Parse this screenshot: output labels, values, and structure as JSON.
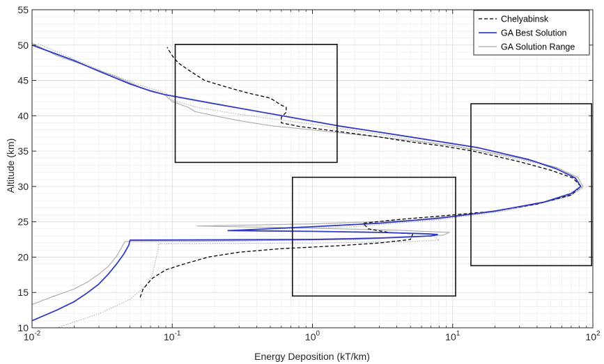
{
  "chart_data": {
    "type": "line",
    "xlabel": "Energy Deposition (kT/km)",
    "ylabel": "Altitude (km)",
    "xscale": "log",
    "xlim": [
      0.01,
      100
    ],
    "ylim": [
      10,
      55
    ],
    "grid": "on (major and minor)",
    "legend_position": "top-right",
    "x_tick_labels": [
      {
        "value": 0.01,
        "base": "10",
        "exp": "-2"
      },
      {
        "value": 0.1,
        "base": "10",
        "exp": "-1"
      },
      {
        "value": 1,
        "base": "10",
        "exp": "0"
      },
      {
        "value": 10,
        "base": "10",
        "exp": "1"
      },
      {
        "value": 100,
        "base": "10",
        "exp": "2"
      }
    ],
    "y_ticks": [
      10,
      15,
      20,
      25,
      30,
      35,
      40,
      45,
      50,
      55
    ],
    "series": [
      {
        "name": "Chelyabinsk",
        "color": "#000000",
        "style": "dashed",
        "points": [
          [
            0.059,
            14.3
          ],
          [
            0.062,
            15.5
          ],
          [
            0.072,
            17.0
          ],
          [
            0.09,
            18.2
          ],
          [
            0.12,
            19.0
          ],
          [
            0.18,
            20.0
          ],
          [
            0.3,
            20.7
          ],
          [
            0.6,
            21.2
          ],
          [
            1.5,
            21.6
          ],
          [
            3.0,
            22.0
          ],
          [
            5.0,
            22.5
          ],
          [
            5.2,
            23.3
          ],
          [
            3.5,
            23.5
          ],
          [
            2.5,
            24.0
          ],
          [
            2.3,
            24.8
          ],
          [
            4.0,
            25.3
          ],
          [
            8.0,
            25.8
          ],
          [
            20.0,
            26.5
          ],
          [
            40.0,
            27.5
          ],
          [
            70.0,
            28.8
          ],
          [
            82.0,
            30.0
          ],
          [
            72.0,
            31.2
          ],
          [
            50.0,
            32.3
          ],
          [
            30.0,
            33.5
          ],
          [
            14.0,
            35.0
          ],
          [
            8.0,
            35.8
          ],
          [
            5.0,
            36.3
          ],
          [
            3.0,
            37.0
          ],
          [
            1.5,
            37.8
          ],
          [
            0.8,
            38.5
          ],
          [
            0.6,
            39.0
          ],
          [
            0.6,
            39.8
          ],
          [
            0.65,
            40.5
          ],
          [
            0.65,
            41.2
          ],
          [
            0.6,
            41.5
          ],
          [
            0.5,
            42.5
          ],
          [
            0.35,
            43.2
          ],
          [
            0.25,
            44.0
          ],
          [
            0.17,
            45.0
          ],
          [
            0.13,
            46.5
          ],
          [
            0.11,
            47.5
          ],
          [
            0.1,
            48.5
          ],
          [
            0.095,
            49.2
          ],
          [
            0.092,
            49.7
          ]
        ]
      },
      {
        "name": "GA Best Solution",
        "color": "#2f3bc7",
        "style": "solid",
        "points": [
          [
            0.01,
            11.0
          ],
          [
            0.015,
            12.5
          ],
          [
            0.02,
            13.7
          ],
          [
            0.025,
            15.0
          ],
          [
            0.03,
            16.2
          ],
          [
            0.035,
            17.6
          ],
          [
            0.04,
            19.0
          ],
          [
            0.045,
            20.4
          ],
          [
            0.049,
            21.7
          ],
          [
            0.05,
            22.4
          ],
          [
            1.0,
            22.5
          ],
          [
            3.0,
            22.7
          ],
          [
            7.0,
            23.0
          ],
          [
            7.8,
            23.2
          ],
          [
            6.5,
            23.3
          ],
          [
            3.0,
            23.5
          ],
          [
            1.0,
            23.65
          ],
          [
            0.25,
            23.75
          ],
          [
            1.0,
            24.3
          ],
          [
            3.0,
            24.8
          ],
          [
            8.0,
            25.5
          ],
          [
            20.0,
            26.5
          ],
          [
            45.0,
            27.8
          ],
          [
            70.0,
            29.0
          ],
          [
            82.0,
            30.0
          ],
          [
            75.0,
            31.2
          ],
          [
            55.0,
            32.5
          ],
          [
            35.0,
            33.8
          ],
          [
            15.0,
            35.5
          ],
          [
            5.0,
            37.0
          ],
          [
            1.5,
            38.6
          ],
          [
            0.5,
            40.3
          ],
          [
            0.2,
            41.7
          ],
          [
            0.088,
            43.0
          ],
          [
            0.07,
            43.5
          ],
          [
            0.05,
            44.5
          ],
          [
            0.03,
            46.3
          ],
          [
            0.02,
            47.8
          ],
          [
            0.01,
            50.0
          ]
        ]
      },
      {
        "name": "GA Solution Range",
        "color": "#aaaaaa",
        "style": "solid",
        "points": [
          [
            0.01,
            13.3
          ],
          [
            0.014,
            14.4
          ],
          [
            0.02,
            15.5
          ],
          [
            0.025,
            16.5
          ],
          [
            0.03,
            17.6
          ],
          [
            0.035,
            18.7
          ],
          [
            0.04,
            20.1
          ],
          [
            0.043,
            21.2
          ],
          [
            0.046,
            22.2
          ],
          [
            0.3,
            22.3
          ],
          [
            2.0,
            22.5
          ],
          [
            5.0,
            22.8
          ],
          [
            8.5,
            23.1
          ],
          [
            9.5,
            23.5
          ],
          [
            4.0,
            23.8
          ],
          [
            1.0,
            24.1
          ],
          [
            0.15,
            24.4
          ],
          [
            1.0,
            24.7
          ],
          [
            5.0,
            25.2
          ],
          [
            15.0,
            26.2
          ],
          [
            40.0,
            27.5
          ],
          [
            70.0,
            28.7
          ],
          [
            85.0,
            30.0
          ],
          [
            78.0,
            31.3
          ],
          [
            55.0,
            32.7
          ],
          [
            30.0,
            34.0
          ],
          [
            10.0,
            35.8
          ],
          [
            3.0,
            37.0
          ],
          [
            1.0,
            38.0
          ],
          [
            0.5,
            38.6
          ],
          [
            0.3,
            39.3
          ],
          [
            0.2,
            40.0
          ],
          [
            0.145,
            40.6
          ],
          [
            0.13,
            41.2
          ],
          [
            0.1,
            42.0
          ],
          [
            0.088,
            43.0
          ],
          [
            0.06,
            44.0
          ],
          [
            0.04,
            45.5
          ],
          [
            0.025,
            47.0
          ],
          [
            0.015,
            48.5
          ],
          [
            0.01,
            50.3
          ]
        ]
      },
      {
        "name": "GA Solution Range",
        "color": "#aaaaaa",
        "style": "dotted",
        "points": [
          [
            0.015,
            10.0
          ],
          [
            0.03,
            12.0
          ],
          [
            0.05,
            14.0
          ],
          [
            0.065,
            16.0
          ],
          [
            0.072,
            17.5
          ],
          [
            0.076,
            19.5
          ],
          [
            0.079,
            21.0
          ],
          [
            0.08,
            21.9
          ],
          [
            1.0,
            22.0
          ],
          [
            5.0,
            22.2
          ],
          [
            8.0,
            22.4
          ],
          [
            7.0,
            23.3
          ],
          [
            2.0,
            23.6
          ],
          [
            0.25,
            23.8
          ],
          [
            2.0,
            24.3
          ],
          [
            8.0,
            25.3
          ],
          [
            25.0,
            26.6
          ],
          [
            60.0,
            28.3
          ],
          [
            85.0,
            29.7
          ],
          [
            70.0,
            31.7
          ],
          [
            40.0,
            33.3
          ],
          [
            13.0,
            35.3
          ],
          [
            4.0,
            37.0
          ],
          [
            1.0,
            38.8
          ],
          [
            0.3,
            40.2
          ],
          [
            0.15,
            41.2
          ],
          [
            0.1,
            42.2
          ],
          [
            0.09,
            43.2
          ],
          [
            0.06,
            44.3
          ],
          [
            0.03,
            46.5
          ],
          [
            0.02,
            48.0
          ],
          [
            0.011,
            50.2
          ]
        ]
      }
    ],
    "legend": [
      "Chelyabinsk",
      "GA Best Solution",
      "GA Solution Range"
    ],
    "annotation_boxes": [
      {
        "x": [
          0.105,
          1.5
        ],
        "y": [
          33.4,
          50.1
        ]
      },
      {
        "x": [
          0.72,
          10.5
        ],
        "y": [
          14.5,
          31.3
        ]
      },
      {
        "x": [
          13.5,
          98.0
        ],
        "y": [
          18.8,
          41.7
        ]
      }
    ]
  }
}
